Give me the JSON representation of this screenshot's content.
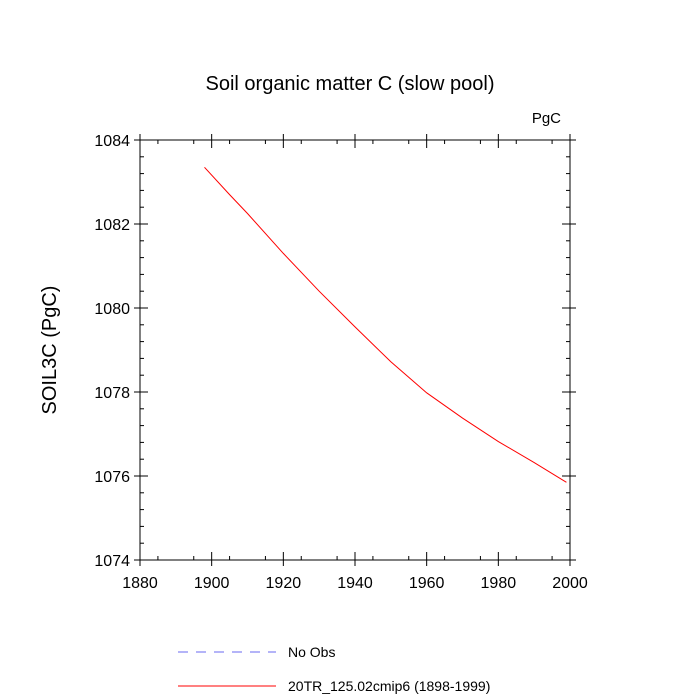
{
  "chart_data": {
    "type": "line",
    "title": "Soil organic matter C (slow pool)",
    "units": "PgC",
    "xlabel": "",
    "ylabel": "SOIL3C  (PgC)",
    "xlim": [
      1880,
      2000
    ],
    "ylim": [
      1074,
      1084
    ],
    "x_ticks": [
      1880,
      1900,
      1920,
      1940,
      1960,
      1980,
      2000
    ],
    "y_ticks": [
      1074,
      1076,
      1078,
      1080,
      1082,
      1084
    ],
    "grid": false,
    "legend_position": "bottom",
    "series": [
      {
        "name": "No Obs",
        "color": "#6a6af0",
        "style": "dashed",
        "x": [],
        "y": []
      },
      {
        "name": "20TR_125.02cmip6 (1898-1999)",
        "color": "#ff0000",
        "style": "solid",
        "x": [
          1898,
          1905,
          1910,
          1920,
          1930,
          1940,
          1950,
          1960,
          1970,
          1980,
          1990,
          1999
        ],
        "y": [
          1083.35,
          1082.7,
          1082.25,
          1081.3,
          1080.4,
          1079.55,
          1078.72,
          1077.98,
          1077.38,
          1076.82,
          1076.32,
          1075.85
        ]
      }
    ]
  }
}
